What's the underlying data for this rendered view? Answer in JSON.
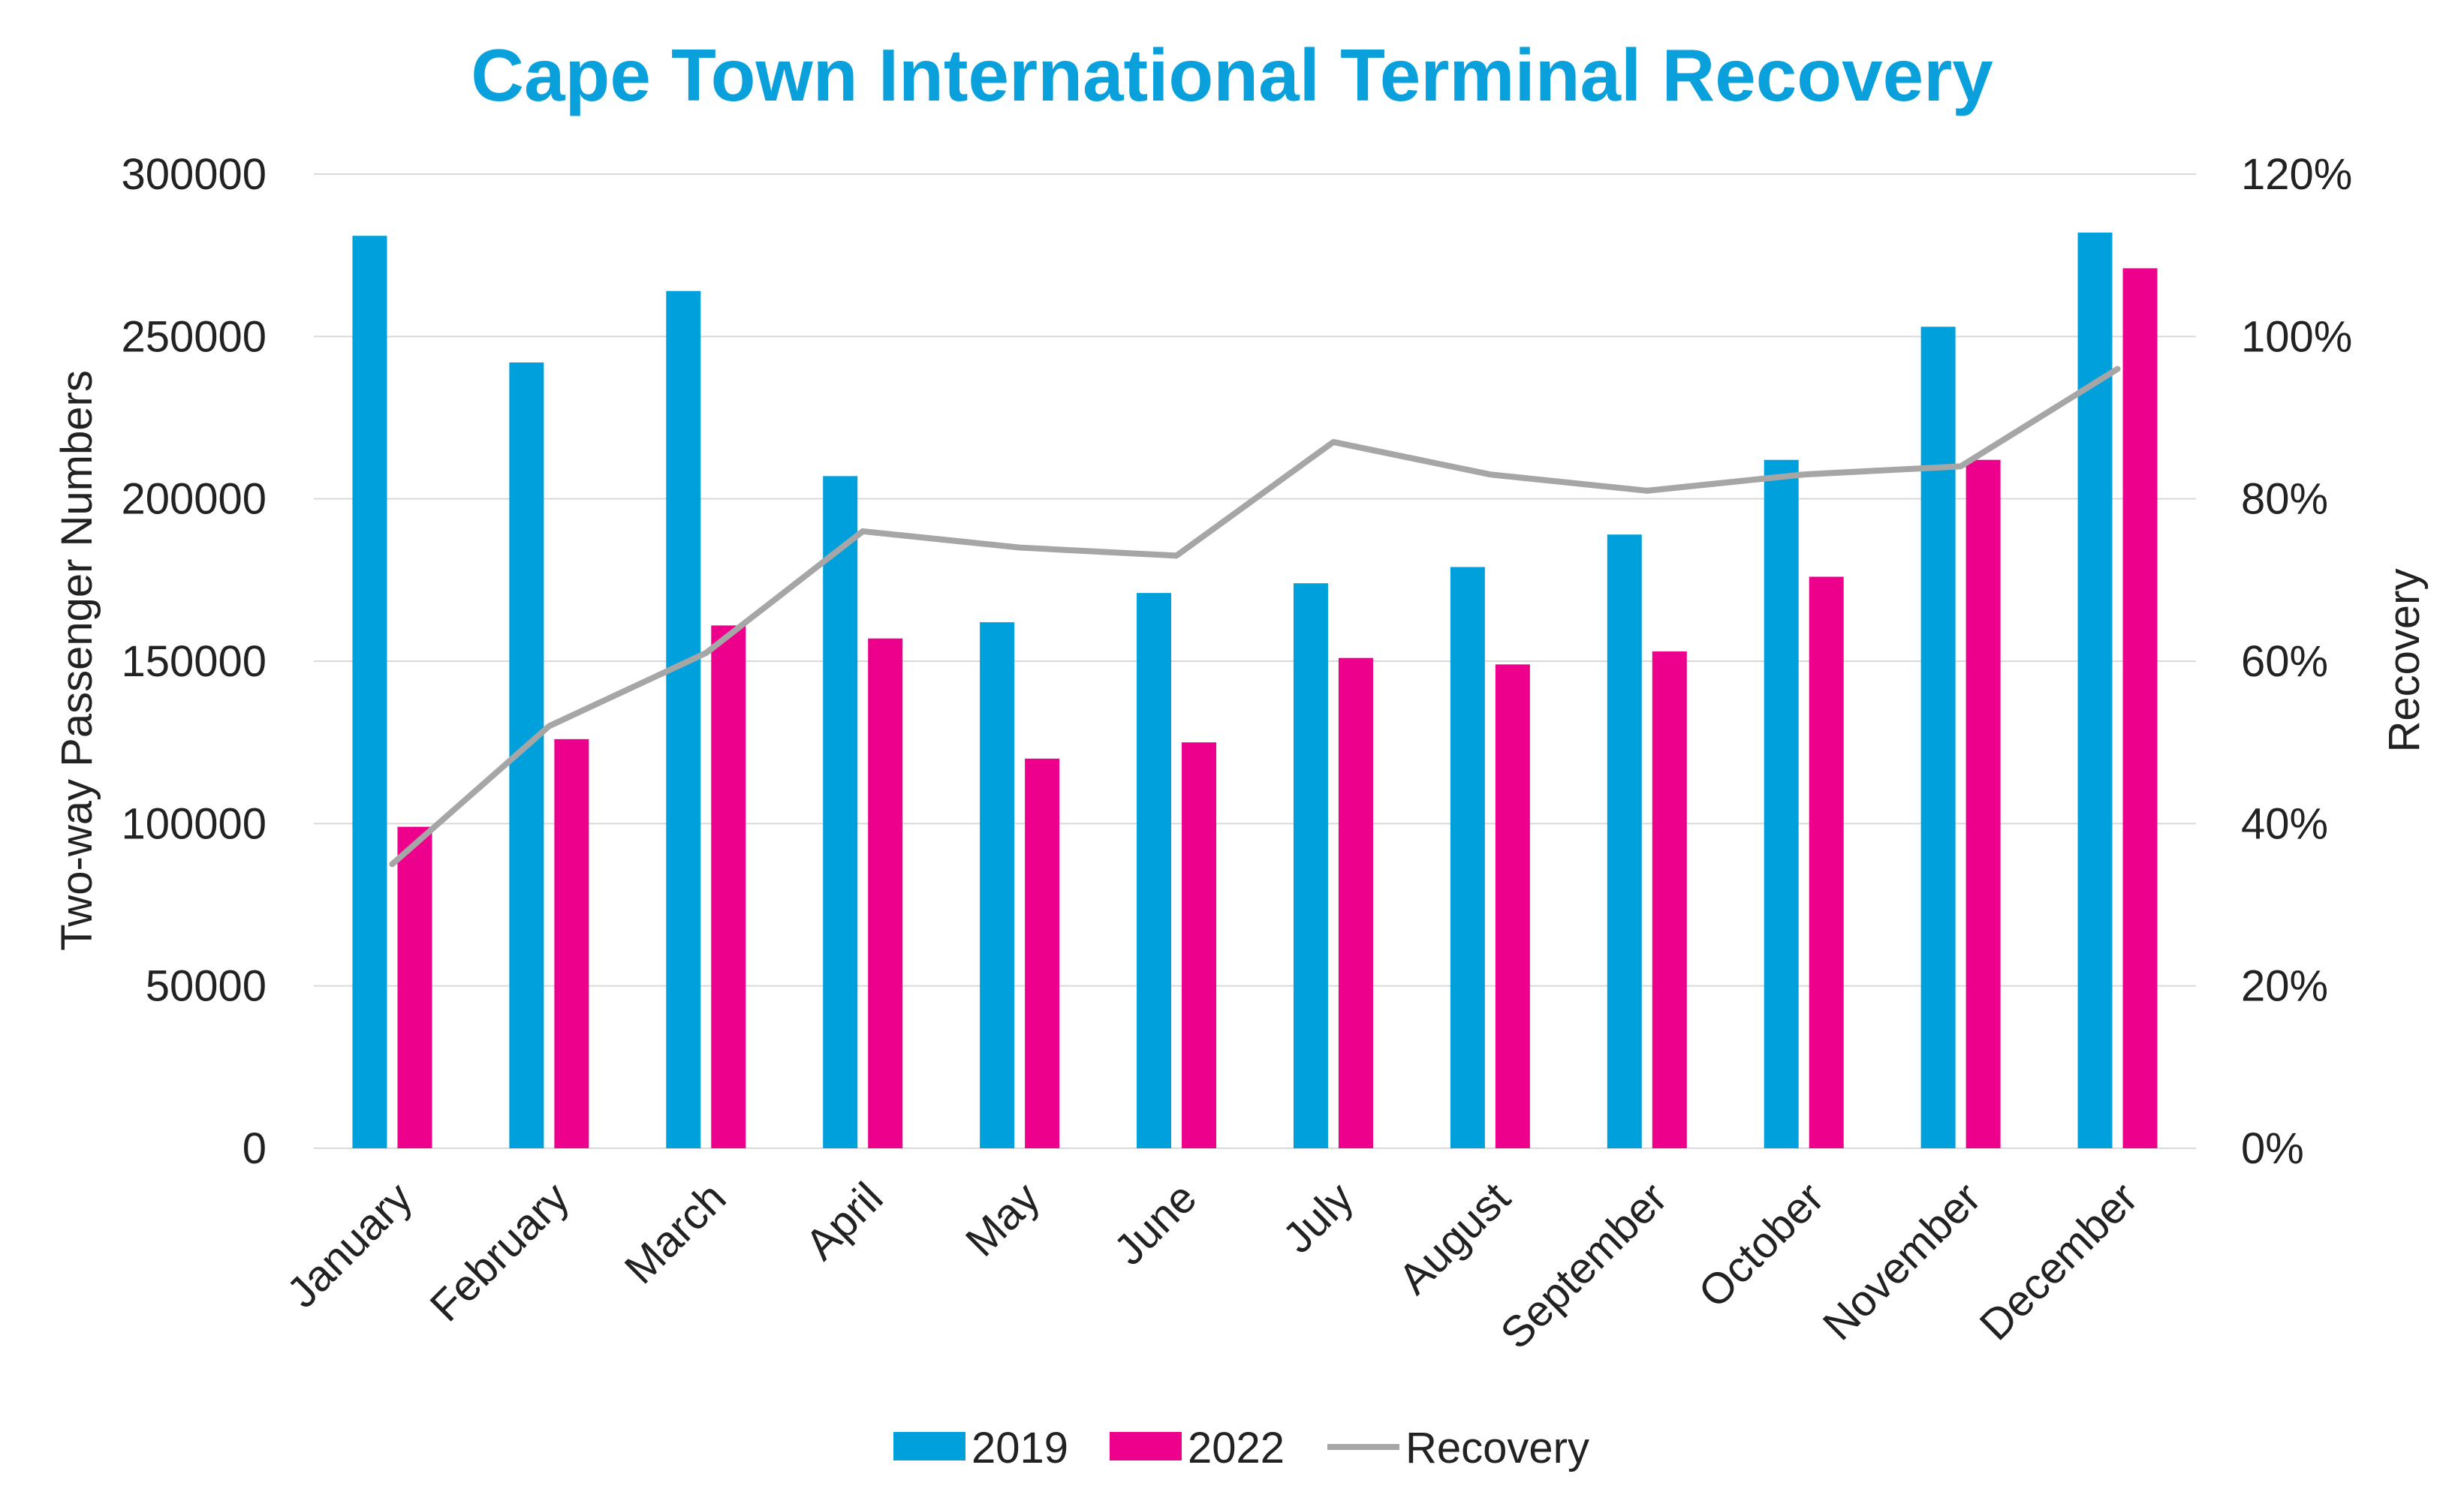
{
  "chart_data": {
    "type": "bar",
    "title": "Cape Town International Terminal Recovery",
    "ylabel": "Two-way Passenger Numbers",
    "y2label": "Recovery",
    "ylim": [
      0,
      300000
    ],
    "y2lim": [
      0,
      1.2
    ],
    "yticks": [
      "0",
      "50000",
      "100000",
      "150000",
      "200000",
      "250000",
      "300000"
    ],
    "y2ticks": [
      "0%",
      "20%",
      "40%",
      "60%",
      "80%",
      "100%",
      "120%"
    ],
    "grid": true,
    "legend_position": "bottom",
    "categories": [
      "January",
      "February",
      "March",
      "April",
      "May",
      "June",
      "July",
      "August",
      "September",
      "October",
      "November",
      "December"
    ],
    "series": [
      {
        "name": "2019",
        "kind": "bar",
        "axis": "left",
        "color": "#00a0dc",
        "values": [
          281000,
          242000,
          264000,
          207000,
          162000,
          171000,
          174000,
          179000,
          189000,
          212000,
          253000,
          282000
        ]
      },
      {
        "name": "2022",
        "kind": "bar",
        "axis": "left",
        "color": "#ec008c",
        "values": [
          99000,
          126000,
          161000,
          157000,
          120000,
          125000,
          151000,
          149000,
          153000,
          176000,
          212000,
          271000
        ]
      },
      {
        "name": "Recovery",
        "kind": "line",
        "axis": "right",
        "color": "#a6a6a6",
        "values": [
          0.35,
          0.52,
          0.61,
          0.76,
          0.74,
          0.73,
          0.87,
          0.83,
          0.81,
          0.83,
          0.84,
          0.96
        ]
      }
    ]
  }
}
